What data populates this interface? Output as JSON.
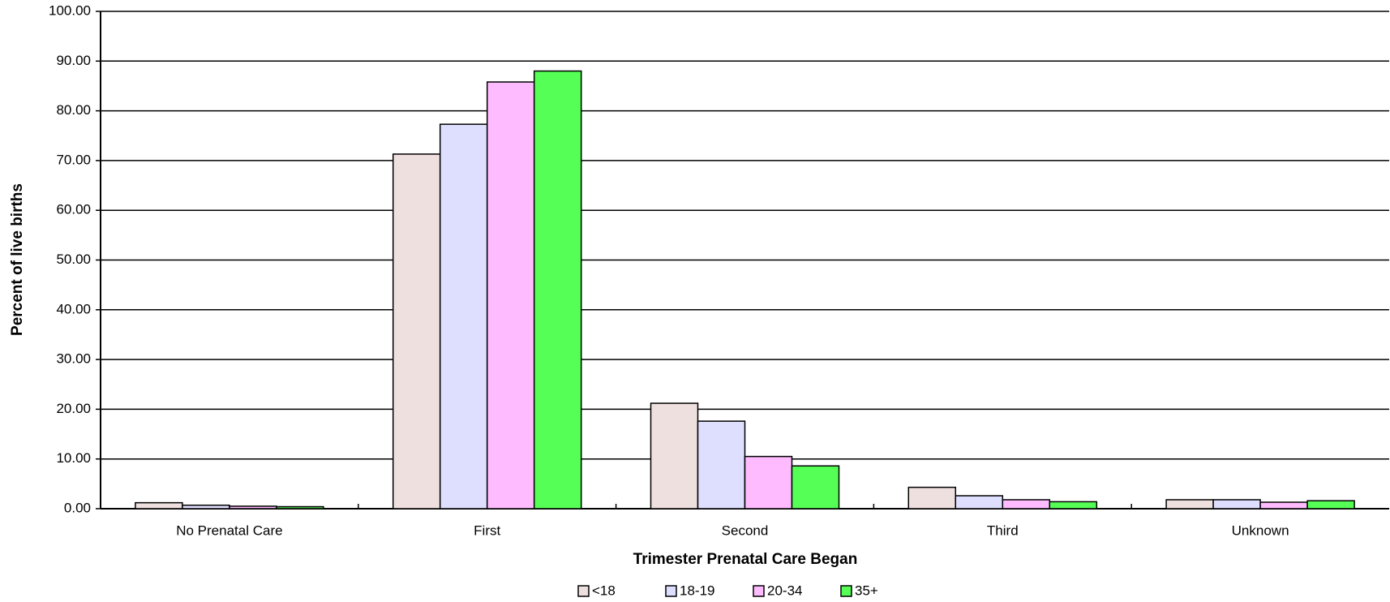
{
  "chart_data": {
    "type": "bar",
    "x_label": "Trimester Prenatal Care Began",
    "y_label": "Percent of live births",
    "categories": [
      "No Prenatal Care",
      "First",
      "Second",
      "Third",
      "Unknown"
    ],
    "series": [
      {
        "name": "<18",
        "color": "#eee0de",
        "values": [
          1.2,
          71.3,
          21.2,
          4.3,
          1.8
        ]
      },
      {
        "name": "18-19",
        "color": "#dedeff",
        "values": [
          0.7,
          77.3,
          17.6,
          2.6,
          1.8
        ]
      },
      {
        "name": "20-34",
        "color": "#ffbbff",
        "values": [
          0.5,
          85.8,
          10.5,
          1.8,
          1.3
        ]
      },
      {
        "name": "35+",
        "color": "#55ff55",
        "values": [
          0.4,
          88.0,
          8.6,
          1.4,
          1.6
        ]
      }
    ],
    "ylim": [
      0,
      100
    ],
    "yticks": [
      {
        "value": 0,
        "label": "0.00"
      },
      {
        "value": 10,
        "label": "10.00"
      },
      {
        "value": 20,
        "label": "20.00"
      },
      {
        "value": 30,
        "label": "30.00"
      },
      {
        "value": 40,
        "label": "40.00"
      },
      {
        "value": 50,
        "label": "50.00"
      },
      {
        "value": 60,
        "label": "60.00"
      },
      {
        "value": 70,
        "label": "70.00"
      },
      {
        "value": 80,
        "label": "80.00"
      },
      {
        "value": 90,
        "label": "90.00"
      },
      {
        "value": 100,
        "label": "100.00"
      }
    ],
    "grid": true
  }
}
